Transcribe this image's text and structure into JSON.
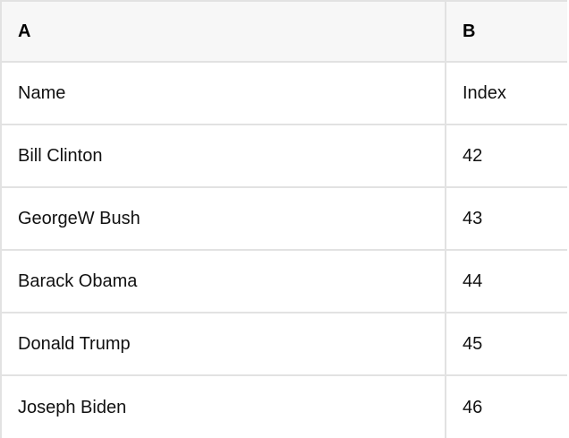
{
  "table": {
    "column_letters": [
      "A",
      "B"
    ],
    "rows": [
      {
        "a": "Name",
        "b": "Index"
      },
      {
        "a": "Bill Clinton",
        "b": "42"
      },
      {
        "a": "GeorgeW Bush",
        "b": "43"
      },
      {
        "a": "Barack Obama",
        "b": "44"
      },
      {
        "a": "Donald Trump",
        "b": "45"
      },
      {
        "a": "Joseph Biden",
        "b": "46"
      }
    ],
    "colors": {
      "header_bg": "#f7f7f7",
      "border": "#e2e2e2",
      "text": "#111111"
    }
  }
}
